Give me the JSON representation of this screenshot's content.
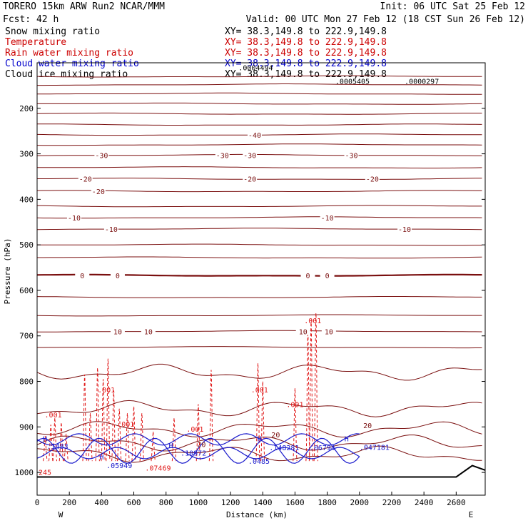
{
  "header": {
    "model": "TORERO  15km ARW   Run2    NCAR/MMM",
    "init": "Init: 06 UTC Sat 25 Feb 12",
    "fcst": "Fcst:   42 h",
    "valid": "Valid: 00 UTC Mon 27 Feb 12 (18 CST Sun 26 Feb 12)"
  },
  "legend": [
    {
      "field": "Snow mixing ratio",
      "xy": "XY=  38.3,149.8 to 222.9,149.8",
      "color": "#000000"
    },
    {
      "field": "Temperature",
      "xy": "XY=  38.3,149.8 to 222.9,149.8",
      "color": "#cc0000"
    },
    {
      "field": "Rain water mixing ratio",
      "xy": "XY=  38.3,149.8 to 222.9,149.8",
      "color": "#cc0000"
    },
    {
      "field": "Cloud water mixing ratio",
      "xy": "XY=  38.3,149.8 to 222.9,149.8",
      "color": "#0000cc"
    },
    {
      "field": "Cloud ice mixing ratio",
      "xy": "XY=  38.3,149.8 to 222.9,149.8",
      "color": "#000000"
    }
  ],
  "colors": {
    "temperature": "#7a0f0f",
    "rain": "#e01818",
    "cloud": "#1a1acc",
    "axis": "#000000"
  },
  "chart_data": {
    "type": "line",
    "xlabel": "Distance (km)",
    "ylabel": "Pressure (hPa)",
    "xlim": [
      0,
      2780
    ],
    "ylim": [
      1050,
      100
    ],
    "xticks": [
      0,
      200,
      400,
      600,
      800,
      1000,
      1200,
      1400,
      1600,
      1800,
      2000,
      2200,
      2400,
      2600
    ],
    "yticks": [
      200,
      300,
      400,
      500,
      600,
      700,
      800,
      900,
      1000
    ],
    "left_end_label": "W",
    "right_end_label": "E",
    "temperature_contours": [
      {
        "p": 130,
        "label": ""
      },
      {
        "p": 148,
        "label": ""
      },
      {
        "p": 168,
        "label": ""
      },
      {
        "p": 190,
        "label": ""
      },
      {
        "p": 212,
        "label": ""
      },
      {
        "p": 236,
        "label": ""
      },
      {
        "p": 258,
        "label": "-40",
        "at": [
          1350
        ]
      },
      {
        "p": 280,
        "label": ""
      },
      {
        "p": 303,
        "label": "-30",
        "at": [
          400,
          1150,
          1320,
          1950
        ]
      },
      {
        "p": 330,
        "label": ""
      },
      {
        "p": 355,
        "label": "-20",
        "at": [
          300,
          1320,
          2080
        ]
      },
      {
        "p": 382,
        "label": "-20",
        "at": [
          380
        ]
      },
      {
        "p": 415,
        "label": ""
      },
      {
        "p": 440,
        "label": "-10",
        "at": [
          230,
          1800
        ]
      },
      {
        "p": 465,
        "label": "-10",
        "at": [
          460,
          2280
        ]
      },
      {
        "p": 500,
        "label": ""
      },
      {
        "p": 528,
        "label": ""
      },
      {
        "p": 567,
        "label": "0",
        "at": [
          280,
          500,
          1680,
          1800
        ],
        "bold": true
      },
      {
        "p": 615,
        "label": ""
      },
      {
        "p": 655,
        "label": ""
      },
      {
        "p": 690,
        "label": "10",
        "at": [
          500,
          690,
          1650,
          1810
        ]
      },
      {
        "p": 725,
        "label": ""
      }
    ],
    "temperature_labels": [
      {
        "text": "20",
        "x": 1020,
        "p": 938
      },
      {
        "text": "20",
        "x": 1480,
        "p": 917
      },
      {
        "text": "20",
        "x": 2050,
        "p": 896
      }
    ],
    "rain_labels": [
      {
        "text": ".001",
        "x": 100,
        "p": 873
      },
      {
        "text": ".001",
        "x": 430,
        "p": 818
      },
      {
        "text": ".001",
        "x": 550,
        "p": 893
      },
      {
        "text": ".001",
        "x": 980,
        "p": 904
      },
      {
        "text": ".001",
        "x": 1380,
        "p": 818
      },
      {
        "text": ".001",
        "x": 1600,
        "p": 850
      },
      {
        "text": ".001",
        "x": 1710,
        "p": 666
      },
      {
        "text": ".07469",
        "x": 750,
        "p": 990
      }
    ],
    "rain_spikes": [
      {
        "x": 50,
        "top": 920
      },
      {
        "x": 85,
        "top": 895
      },
      {
        "x": 110,
        "top": 880
      },
      {
        "x": 150,
        "top": 890
      },
      {
        "x": 180,
        "top": 915
      },
      {
        "x": 295,
        "top": 785
      },
      {
        "x": 330,
        "top": 870
      },
      {
        "x": 375,
        "top": 770
      },
      {
        "x": 410,
        "top": 795
      },
      {
        "x": 440,
        "top": 750
      },
      {
        "x": 475,
        "top": 820
      },
      {
        "x": 510,
        "top": 860
      },
      {
        "x": 560,
        "top": 870
      },
      {
        "x": 600,
        "top": 855
      },
      {
        "x": 650,
        "top": 870
      },
      {
        "x": 720,
        "top": 910
      },
      {
        "x": 850,
        "top": 880
      },
      {
        "x": 1000,
        "top": 850
      },
      {
        "x": 1080,
        "top": 775
      },
      {
        "x": 1370,
        "top": 760
      },
      {
        "x": 1400,
        "top": 800
      },
      {
        "x": 1600,
        "top": 815
      },
      {
        "x": 1680,
        "top": 685
      },
      {
        "x": 1700,
        "top": 665
      },
      {
        "x": 1730,
        "top": 650
      }
    ],
    "cloud_labels": [
      {
        "text": ".1483",
        "x": 60,
        "p": 942
      },
      {
        "text": ".10972",
        "x": 890,
        "p": 957
      },
      {
        "text": ".0485",
        "x": 1310,
        "p": 975
      },
      {
        "text": ".148281",
        "x": 1440,
        "p": 945
      },
      {
        "text": ".06794",
        "x": 1690,
        "p": 945
      },
      {
        "text": ".047181",
        "x": 2000,
        "p": 944
      },
      {
        "text": ".05949",
        "x": 430,
        "p": 984
      }
    ],
    "cloud_highs": [
      {
        "text": "H",
        "x": 50,
        "p": 925
      },
      {
        "text": "H",
        "x": 400,
        "p": 965
      },
      {
        "text": "H",
        "x": 830,
        "p": 940
      },
      {
        "text": "H",
        "x": 1380,
        "p": 925
      },
      {
        "text": "H",
        "x": 1920,
        "p": 925
      }
    ],
    "low_left_label": "245",
    "upper_values": [
      {
        "text": ".0005405",
        "x": 1850,
        "p": 140
      },
      {
        "text": ".0000297",
        "x": 2280,
        "p": 140
      },
      {
        "text": ".0004494",
        "x": 1250,
        "p": 110
      }
    ]
  }
}
